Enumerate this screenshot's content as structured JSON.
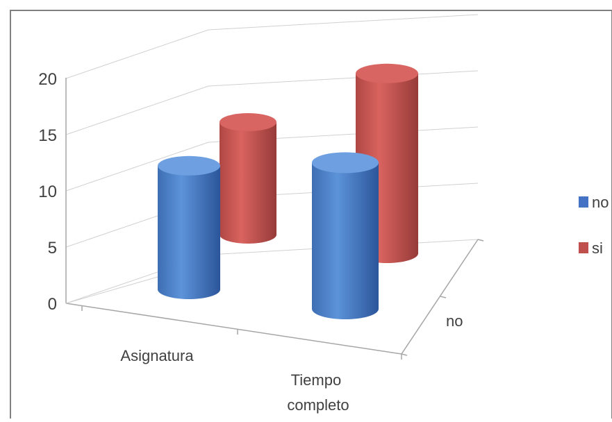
{
  "chart_data": {
    "type": "bar",
    "categories": [
      "Asignatura",
      "Tiempo completo"
    ],
    "depth_label": "no",
    "y_ticks": [
      "0",
      "5",
      "10",
      "15",
      "20"
    ],
    "ylim": [
      0,
      20
    ],
    "grid": true,
    "legend_position": "right",
    "series": [
      {
        "name": "no",
        "values": [
          11,
          13
        ],
        "color": "#4472C4"
      },
      {
        "name": "si",
        "values": [
          10,
          16
        ],
        "color": "#C0504D"
      }
    ]
  }
}
